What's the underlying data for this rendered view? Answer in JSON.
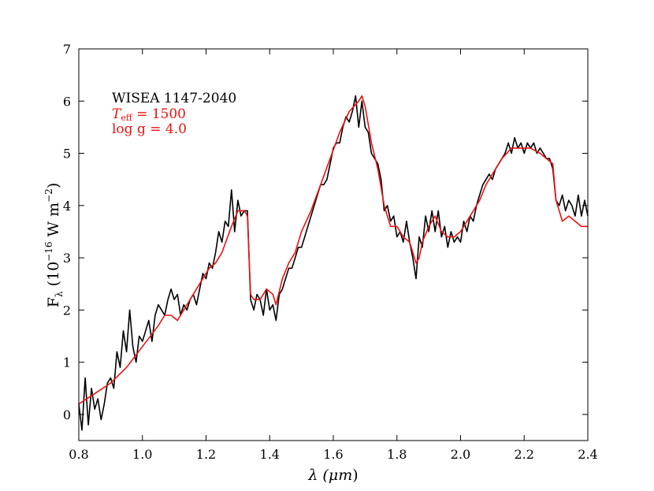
{
  "chart_data": {
    "type": "line",
    "xlabel_prefix": "λ (",
    "xlabel_unit": "μm",
    "xlabel_suffix": ")",
    "ylabel_main": "F",
    "ylabel_sub": "λ",
    "ylabel_open": " (10",
    "ylabel_exp": "−16",
    "ylabel_mid": " W m",
    "ylabel_exp2": "−2",
    "ylabel_close": ")",
    "xlim": [
      0.8,
      2.4
    ],
    "ylim": [
      -0.5,
      7
    ],
    "xticks": [
      "0.8",
      "1.0",
      "1.2",
      "1.4",
      "1.6",
      "1.8",
      "2.0",
      "2.2",
      "2.4"
    ],
    "yticks": [
      "0",
      "1",
      "2",
      "3",
      "4",
      "5",
      "6",
      "7"
    ],
    "annotations": {
      "object": "WISEA 1147-2040",
      "teff_symbol": "T",
      "teff_sub": "eff",
      "teff_value": " = 1500",
      "logg": "log g = 4.0"
    },
    "colors": {
      "observed": "#000000",
      "model": "#ee1111"
    },
    "series": [
      {
        "role": "observed",
        "x": [
          0.8,
          0.81,
          0.82,
          0.83,
          0.84,
          0.85,
          0.86,
          0.87,
          0.88,
          0.89,
          0.9,
          0.91,
          0.92,
          0.93,
          0.94,
          0.95,
          0.96,
          0.97,
          0.98,
          0.99,
          1.0,
          1.01,
          1.02,
          1.03,
          1.04,
          1.05,
          1.06,
          1.07,
          1.08,
          1.09,
          1.1,
          1.11,
          1.12,
          1.13,
          1.14,
          1.15,
          1.16,
          1.17,
          1.18,
          1.19,
          1.2,
          1.21,
          1.22,
          1.23,
          1.24,
          1.25,
          1.26,
          1.27,
          1.28,
          1.29,
          1.3,
          1.31,
          1.32,
          1.33,
          1.34,
          1.35,
          1.36,
          1.37,
          1.38,
          1.39,
          1.4,
          1.41,
          1.42,
          1.43,
          1.44,
          1.45,
          1.46,
          1.47,
          1.48,
          1.49,
          1.5,
          1.51,
          1.52,
          1.53,
          1.54,
          1.55,
          1.56,
          1.57,
          1.58,
          1.59,
          1.6,
          1.61,
          1.62,
          1.63,
          1.64,
          1.65,
          1.66,
          1.67,
          1.68,
          1.69,
          1.7,
          1.71,
          1.72,
          1.73,
          1.74,
          1.75,
          1.76,
          1.77,
          1.78,
          1.79,
          1.8,
          1.81,
          1.82,
          1.83,
          1.84,
          1.85,
          1.86,
          1.87,
          1.88,
          1.89,
          1.9,
          1.91,
          1.92,
          1.93,
          1.94,
          1.95,
          1.96,
          1.97,
          1.98,
          1.99,
          2.0,
          2.01,
          2.02,
          2.03,
          2.04,
          2.05,
          2.06,
          2.07,
          2.08,
          2.09,
          2.1,
          2.11,
          2.12,
          2.13,
          2.14,
          2.15,
          2.16,
          2.17,
          2.18,
          2.19,
          2.2,
          2.21,
          2.22,
          2.23,
          2.24,
          2.25,
          2.26,
          2.27,
          2.28,
          2.29,
          2.3,
          2.31,
          2.32,
          2.33,
          2.34,
          2.35,
          2.36,
          2.37,
          2.38,
          2.39,
          2.4
        ],
        "y": [
          0.2,
          -0.3,
          0.7,
          -0.2,
          0.5,
          0.1,
          0.3,
          -0.1,
          0.2,
          0.6,
          0.7,
          0.5,
          1.2,
          0.9,
          1.6,
          1.2,
          2.0,
          1.3,
          1.0,
          1.5,
          1.4,
          1.6,
          1.8,
          1.4,
          1.9,
          2.1,
          2.0,
          1.9,
          2.2,
          2.4,
          2.2,
          2.3,
          1.9,
          2.1,
          2.0,
          2.2,
          2.3,
          2.1,
          2.4,
          2.7,
          2.6,
          2.9,
          2.8,
          3.1,
          3.5,
          3.3,
          3.7,
          3.6,
          4.3,
          3.5,
          4.1,
          3.8,
          3.9,
          3.9,
          2.2,
          2.0,
          2.3,
          2.2,
          1.9,
          2.4,
          2.0,
          2.1,
          1.8,
          2.3,
          2.4,
          2.6,
          2.8,
          2.8,
          3.0,
          3.2,
          3.2,
          3.4,
          3.6,
          3.8,
          4.0,
          4.2,
          4.4,
          4.4,
          4.5,
          4.8,
          5.1,
          5.2,
          5.2,
          5.5,
          5.7,
          5.6,
          5.8,
          6.1,
          5.5,
          6.0,
          5.5,
          5.4,
          5.0,
          4.9,
          4.8,
          4.5,
          3.9,
          4.0,
          3.7,
          3.8,
          3.4,
          3.5,
          3.3,
          3.7,
          3.3,
          3.0,
          2.6,
          3.4,
          3.2,
          3.8,
          3.5,
          3.9,
          3.5,
          3.9,
          3.4,
          3.6,
          3.2,
          3.5,
          3.3,
          3.4,
          3.3,
          3.7,
          3.5,
          3.8,
          3.7,
          4.0,
          4.2,
          4.4,
          4.5,
          4.6,
          4.5,
          4.7,
          4.8,
          4.9,
          5.0,
          5.2,
          5.0,
          5.3,
          5.1,
          5.2,
          5.0,
          5.2,
          5.1,
          5.2,
          5.0,
          5.1,
          5.0,
          4.9,
          4.9,
          4.7,
          4.1,
          4.0,
          4.2,
          3.9,
          4.1,
          4.0,
          3.8,
          4.2,
          3.8,
          4.1,
          3.8
        ]
      },
      {
        "role": "model",
        "x": [
          0.8,
          0.85,
          0.9,
          0.95,
          1.0,
          1.05,
          1.07,
          1.09,
          1.11,
          1.13,
          1.15,
          1.18,
          1.21,
          1.23,
          1.25,
          1.28,
          1.3,
          1.32,
          1.33,
          1.34,
          1.35,
          1.37,
          1.39,
          1.41,
          1.42,
          1.44,
          1.46,
          1.48,
          1.5,
          1.53,
          1.56,
          1.59,
          1.62,
          1.65,
          1.68,
          1.69,
          1.7,
          1.72,
          1.74,
          1.76,
          1.78,
          1.8,
          1.82,
          1.84,
          1.86,
          1.87,
          1.88,
          1.9,
          1.92,
          1.94,
          1.96,
          1.98,
          2.0,
          2.02,
          2.04,
          2.06,
          2.08,
          2.1,
          2.13,
          2.16,
          2.19,
          2.22,
          2.25,
          2.27,
          2.29,
          2.3,
          2.31,
          2.32,
          2.34,
          2.36,
          2.38,
          2.4
        ],
        "y": [
          0.2,
          0.4,
          0.6,
          0.9,
          1.3,
          1.7,
          1.9,
          1.9,
          1.8,
          2.0,
          2.2,
          2.5,
          2.8,
          2.9,
          3.1,
          3.6,
          3.9,
          3.9,
          3.8,
          2.3,
          2.2,
          2.2,
          2.4,
          2.3,
          2.1,
          2.6,
          2.9,
          3.1,
          3.5,
          3.9,
          4.4,
          4.9,
          5.4,
          5.8,
          6.0,
          6.1,
          5.9,
          5.2,
          4.7,
          4.0,
          3.6,
          3.6,
          3.4,
          3.3,
          2.9,
          3.0,
          3.3,
          3.6,
          3.8,
          3.5,
          3.4,
          3.4,
          3.5,
          3.7,
          3.9,
          4.1,
          4.4,
          4.6,
          4.9,
          5.1,
          5.1,
          5.1,
          5.0,
          4.9,
          4.8,
          4.1,
          3.9,
          3.7,
          3.8,
          3.7,
          3.6,
          3.6
        ]
      }
    ]
  }
}
